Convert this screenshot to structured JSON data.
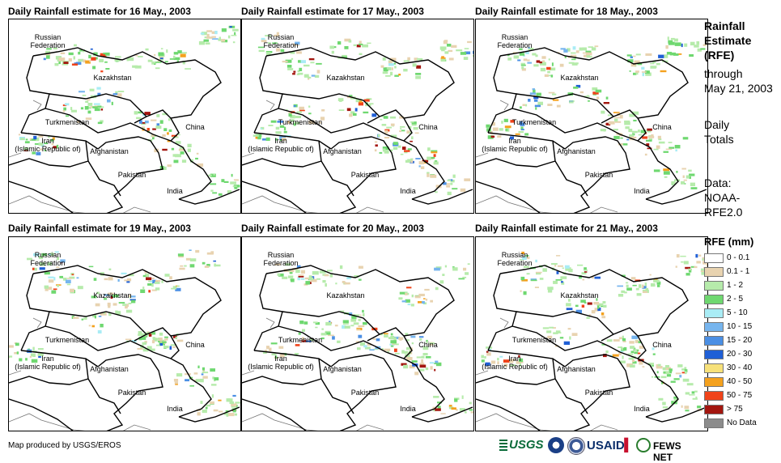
{
  "panels": [
    {
      "title": "Daily Rainfall estimate for 16 May., 2003"
    },
    {
      "title": "Daily Rainfall estimate for 17 May., 2003"
    },
    {
      "title": "Daily Rainfall estimate for 18 May., 2003"
    },
    {
      "title": "Daily Rainfall estimate for 19 May., 2003"
    },
    {
      "title": "Daily Rainfall estimate for 20 May., 2003"
    },
    {
      "title": "Daily Rainfall estimate for 21 May., 2003"
    }
  ],
  "map_labels": {
    "russia": "Russian\nFederation",
    "kazakhstan": "Kazakhstan",
    "turkmenistan": "Turkmenistan",
    "iran": "Iran\n(Islamic Republic of)",
    "afghanistan": "Afghanistan",
    "pakistan": "Pakistan",
    "china": "China",
    "india": "India"
  },
  "side_panel": {
    "heading": [
      "Rainfall",
      "Estimate",
      "(RFE)"
    ],
    "through": [
      "through",
      "May 21, 2003"
    ],
    "totals": [
      "Daily",
      "Totals"
    ],
    "data": [
      "Data:",
      "NOAA-",
      "RFE2.0"
    ]
  },
  "legend": {
    "title": "RFE (mm)",
    "items": [
      {
        "label": "0 - 0.1",
        "color": "#ffffff"
      },
      {
        "label": "0.1 - 1",
        "color": "#e8d3b0"
      },
      {
        "label": "1 - 2",
        "color": "#b6ebab"
      },
      {
        "label": "2 - 5",
        "color": "#6fd870"
      },
      {
        "label": "5 - 10",
        "color": "#a9ecf5"
      },
      {
        "label": "10 - 15",
        "color": "#76b5ee"
      },
      {
        "label": "15 - 20",
        "color": "#4b8fe4"
      },
      {
        "label": "20 - 30",
        "color": "#1f5fd6"
      },
      {
        "label": "30 - 40",
        "color": "#f7e17a"
      },
      {
        "label": "40 - 50",
        "color": "#f4a11e"
      },
      {
        "label": "50 - 75",
        "color": "#f0431a"
      },
      {
        "label": "> 75",
        "color": "#a3160f"
      },
      {
        "label": "No Data",
        "color": "#8c8c8c"
      }
    ]
  },
  "footer": {
    "credit": "Map produced by USGS/EROS",
    "logos": {
      "usgs": "USGS",
      "usaid": "USAID",
      "fews": "FEWS NET"
    }
  }
}
